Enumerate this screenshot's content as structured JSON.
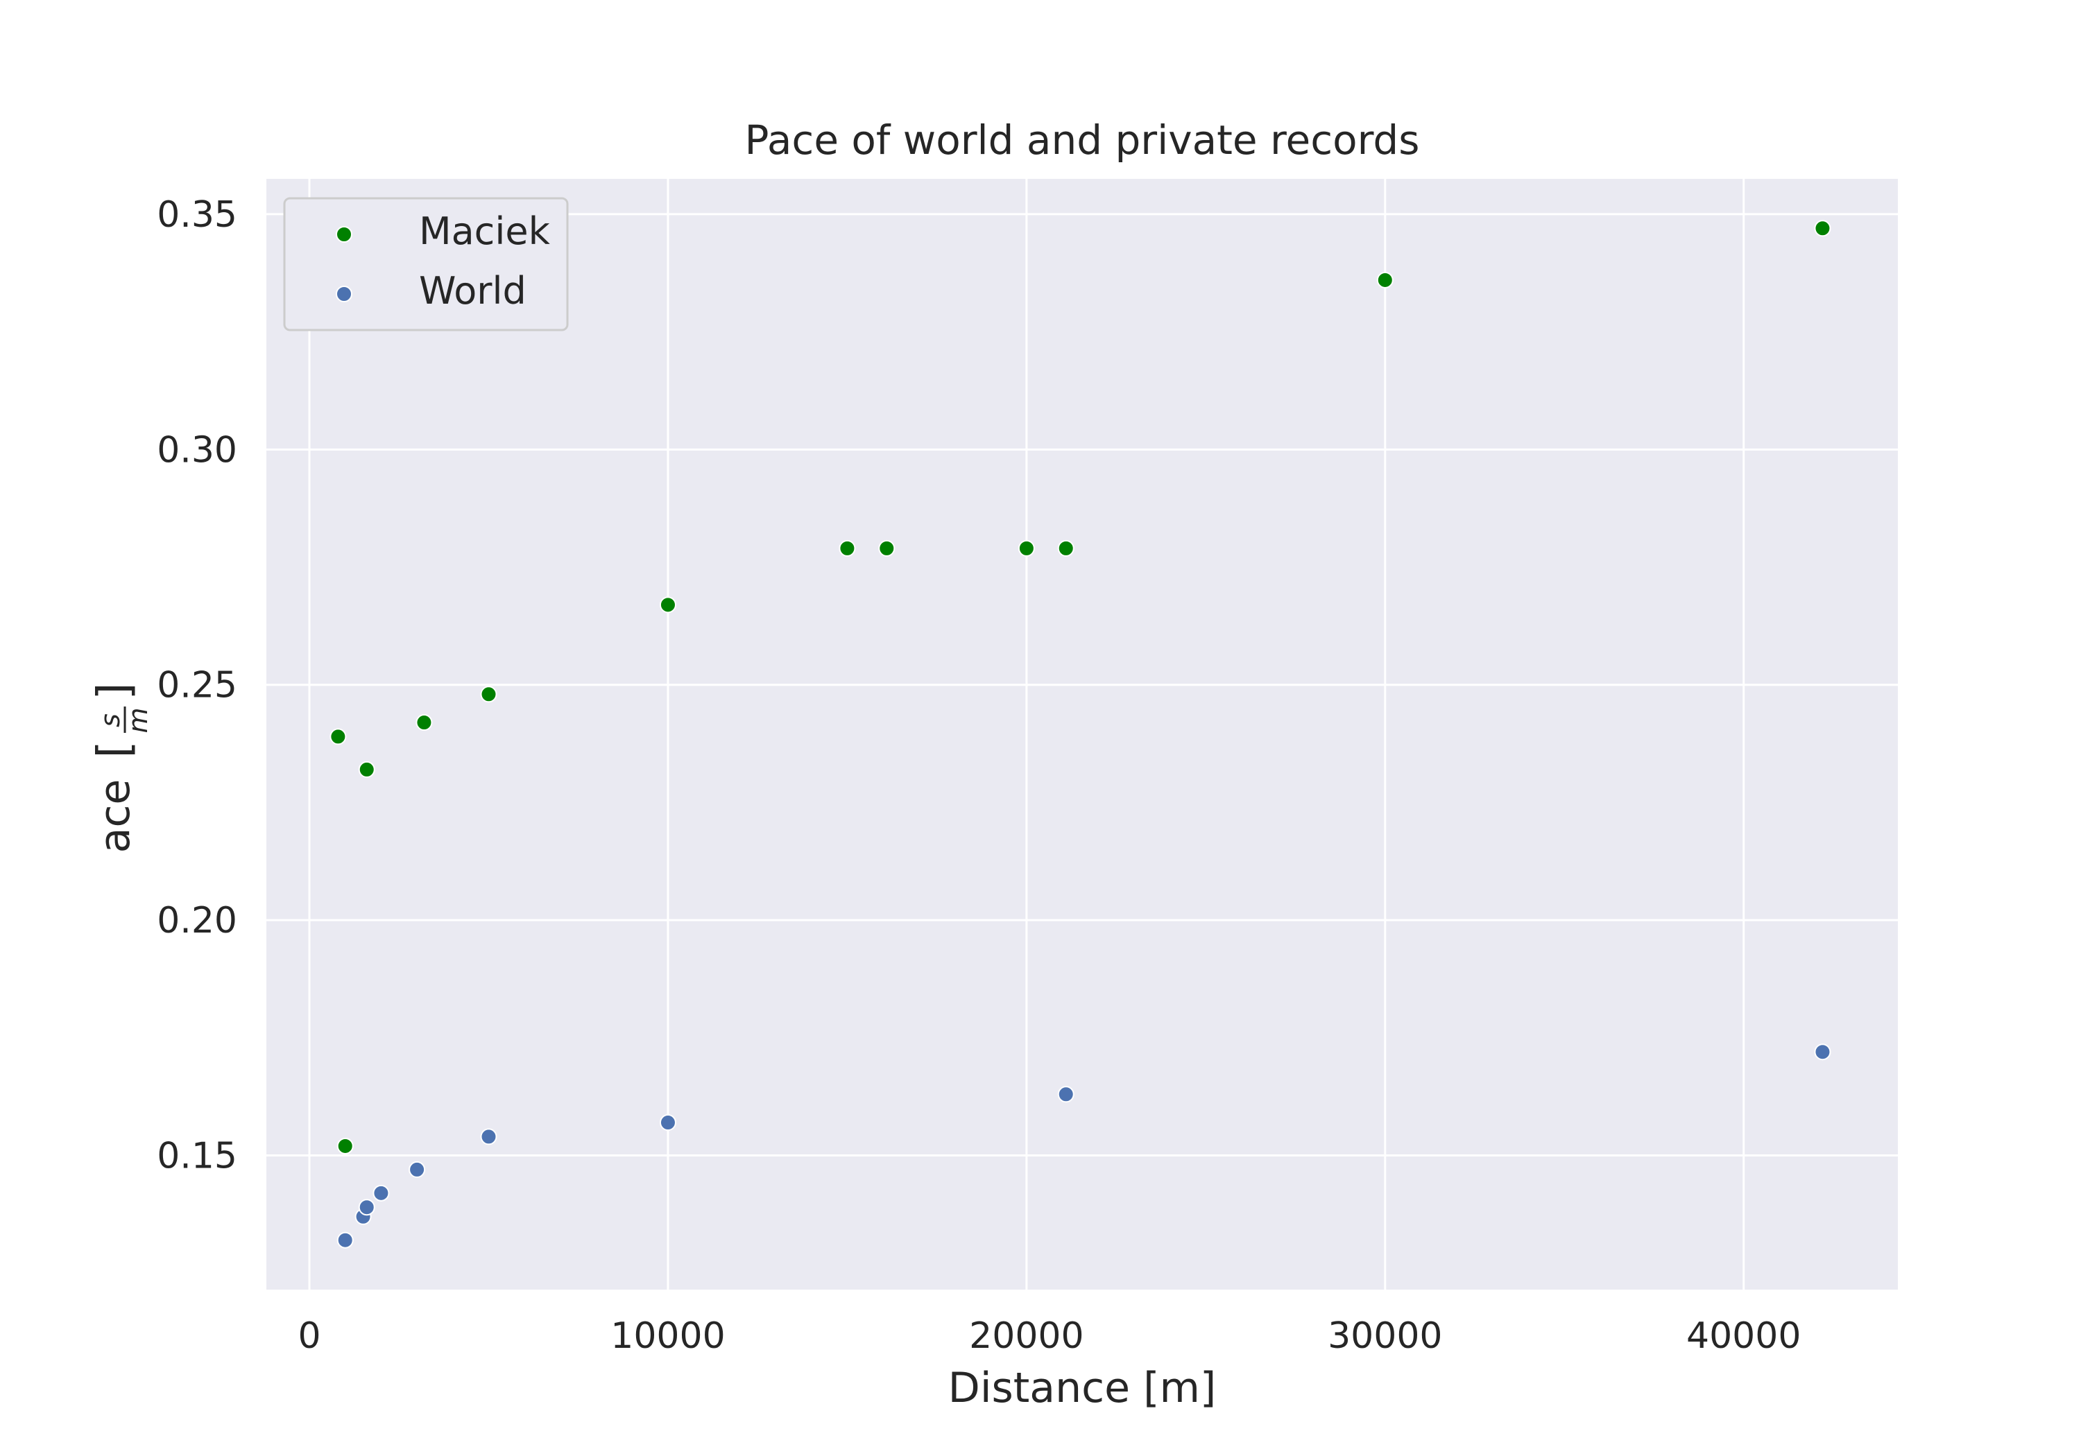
{
  "chart_data": {
    "type": "scatter",
    "title": "Pace of world and private records",
    "xlabel": "Distance [m]",
    "ylabel": {
      "prefix": "ace",
      "frac_num": "s",
      "frac_den": "m"
    },
    "xlim": [
      -1200,
      44300
    ],
    "ylim": [
      0.1215,
      0.3575
    ],
    "xticks": [
      0,
      10000,
      20000,
      30000,
      40000
    ],
    "yticks": [
      0.15,
      0.2,
      0.25,
      0.3,
      0.35
    ],
    "ytick_labels": [
      "0.15",
      "0.20",
      "0.25",
      "0.30",
      "0.35"
    ],
    "grid": true,
    "legend_position": "top-left",
    "series": [
      {
        "name": "Maciek",
        "color": "#008000",
        "points": [
          {
            "x": 800,
            "y": 0.239
          },
          {
            "x": 1000,
            "y": 0.152
          },
          {
            "x": 1600,
            "y": 0.232
          },
          {
            "x": 3200,
            "y": 0.242
          },
          {
            "x": 5000,
            "y": 0.248
          },
          {
            "x": 10000,
            "y": 0.267
          },
          {
            "x": 15000,
            "y": 0.279
          },
          {
            "x": 16100,
            "y": 0.279
          },
          {
            "x": 20000,
            "y": 0.279
          },
          {
            "x": 21100,
            "y": 0.279
          },
          {
            "x": 30000,
            "y": 0.336
          },
          {
            "x": 42200,
            "y": 0.347
          }
        ]
      },
      {
        "name": "World",
        "color": "#4c72b0",
        "points": [
          {
            "x": 1000,
            "y": 0.132
          },
          {
            "x": 1500,
            "y": 0.137
          },
          {
            "x": 1600,
            "y": 0.139
          },
          {
            "x": 2000,
            "y": 0.142
          },
          {
            "x": 3000,
            "y": 0.147
          },
          {
            "x": 5000,
            "y": 0.154
          },
          {
            "x": 10000,
            "y": 0.157
          },
          {
            "x": 21100,
            "y": 0.163
          },
          {
            "x": 42200,
            "y": 0.172
          }
        ]
      }
    ]
  }
}
